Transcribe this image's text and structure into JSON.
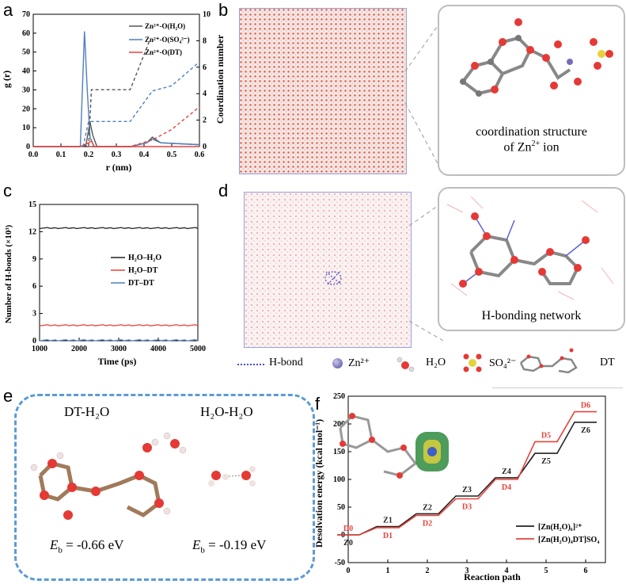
{
  "panels": {
    "a": {
      "label": "a",
      "xlabel": "r (nm)",
      "ylabel_left": "g (r)",
      "ylabel_right": "Coordination number",
      "legend": [
        "Zn²⁺-O(H₂O)",
        "Zn²⁺-O(SO₄²⁻)",
        "Zn²⁺-O(DT)"
      ],
      "xticks": [
        "0.0",
        "0.1",
        "0.2",
        "0.3",
        "0.4",
        "0.5",
        "0.6"
      ],
      "yticks_left": [
        "0",
        "10",
        "20",
        "30",
        "40",
        "50",
        "60",
        "70"
      ],
      "yticks_right": [
        "0",
        "2",
        "4",
        "6",
        "8",
        "10"
      ]
    },
    "b": {
      "label": "b",
      "caption_line1": "coordination structure",
      "caption_line2_prefix": "of Zn",
      "caption_sup": "2+",
      "caption_line2_suffix": " ion"
    },
    "c": {
      "label": "c",
      "xlabel": "Time (ps)",
      "ylabel": "Number of H-bonds (×10³)",
      "legend": [
        "H₂O–H₂O",
        "H₂O–DT",
        "DT–DT"
      ],
      "xticks": [
        "1000",
        "2000",
        "3000",
        "4000",
        "5000"
      ],
      "yticks": [
        "0",
        "3",
        "6",
        "9",
        "12",
        "15"
      ]
    },
    "d": {
      "label": "d",
      "caption": "H-bonding network",
      "legend_items": [
        "H-bond",
        "Zn²⁺",
        "H₂O",
        "SO₄²⁻",
        "DT"
      ]
    },
    "e": {
      "label": "e",
      "left_title": "DT-H₂O",
      "right_title": "H₂O-H₂O",
      "left_energy": "= -0.66 eV",
      "right_energy": "= -0.19 eV",
      "eb_symbol": "E",
      "eb_sub": "b"
    },
    "f": {
      "label": "f",
      "xlabel": "Reaction path",
      "ylabel": "Desolvation energy (kcal mol⁻¹)",
      "legend": [
        "[Zn(H₂O)₆]²⁺",
        "[Zn(H₂O)₄DT]SO₄"
      ],
      "xticks": [
        "0",
        "1",
        "2",
        "3",
        "4",
        "5",
        "6"
      ],
      "yticks": [
        "-50",
        "0",
        "50",
        "100",
        "150",
        "200",
        "250"
      ]
    }
  },
  "colors": {
    "black": "#222222",
    "blue": "#4f7fc0",
    "red": "#e8423a",
    "dashblue": "#5b9bd5"
  },
  "chart_data": [
    {
      "type": "line",
      "title": "a",
      "xlabel": "r (nm)",
      "ylabel": "g (r)",
      "y2label": "Coordination number",
      "xlim": [
        0,
        0.6
      ],
      "ylim": [
        0,
        70
      ],
      "y2lim": [
        0,
        10
      ],
      "series": [
        {
          "name": "Zn²⁺-O(H₂O) g(r)",
          "x": [
            0,
            0.17,
            0.19,
            0.205,
            0.215,
            0.23,
            0.35,
            0.41,
            0.43,
            0.46,
            0.6
          ],
          "y": [
            0,
            0,
            0.5,
            13,
            6,
            0,
            0,
            2,
            5,
            2,
            1
          ]
        },
        {
          "name": "Zn²⁺-O(SO₄²⁻) g(r)",
          "x": [
            0,
            0.17,
            0.185,
            0.195,
            0.205,
            0.22,
            0.35,
            0.41,
            0.43,
            0.46,
            0.6
          ],
          "y": [
            0,
            0,
            61,
            30,
            5,
            0,
            0,
            2,
            4,
            2,
            1
          ]
        },
        {
          "name": "Zn²⁺-O(DT) g(r)",
          "x": [
            0,
            0.17,
            0.2,
            0.21,
            0.22,
            0.6
          ],
          "y": [
            0,
            0,
            2,
            3,
            0,
            0
          ]
        },
        {
          "name": "Zn²⁺-O(H₂O) CN",
          "x": [
            0.2,
            0.21,
            0.35,
            0.42
          ],
          "y": [
            0,
            4.3,
            4.3,
            8.0
          ]
        },
        {
          "name": "Zn²⁺-O(SO₄²⁻) CN",
          "x": [
            0.18,
            0.2,
            0.35,
            0.43,
            0.5,
            0.6
          ],
          "y": [
            0,
            1.9,
            1.9,
            4.2,
            4.6,
            6.4
          ]
        },
        {
          "name": "Zn²⁺-O(DT) CN",
          "x": [
            0.2,
            0.35,
            0.43,
            0.5,
            0.6
          ],
          "y": [
            0,
            0,
            0.5,
            1.3,
            3.0
          ]
        }
      ]
    },
    {
      "type": "line",
      "title": "c",
      "xlabel": "Time (ps)",
      "ylabel": "Number of H-bonds (×10³)",
      "xlim": [
        1000,
        5000
      ],
      "ylim": [
        0,
        15
      ],
      "series": [
        {
          "name": "H₂O–H₂O",
          "x": [
            1000,
            5000
          ],
          "y": [
            12.4,
            12.4
          ]
        },
        {
          "name": "H₂O–DT",
          "x": [
            1000,
            5000
          ],
          "y": [
            1.7,
            1.7
          ]
        },
        {
          "name": "DT–DT",
          "x": [
            1000,
            5000
          ],
          "y": [
            0.05,
            0.05
          ]
        }
      ]
    },
    {
      "type": "line",
      "title": "f",
      "xlabel": "Reaction path",
      "ylabel": "Desolvation energy (kcal mol⁻¹)",
      "xlim": [
        0,
        6.5
      ],
      "ylim": [
        -50,
        250
      ],
      "series": [
        {
          "name": "[Zn(H₂O)₆]²⁺",
          "steps": [
            "Z0",
            "Z1",
            "Z2",
            "Z3",
            "Z4",
            "Z5",
            "Z6"
          ],
          "x": [
            0,
            1,
            2,
            3,
            4,
            5,
            6
          ],
          "values": [
            0,
            15,
            38,
            70,
            103,
            147,
            203
          ]
        },
        {
          "name": "[Zn(H₂O)₄DT]SO₄",
          "steps": [
            "D0",
            "D1",
            "D2",
            "D3",
            "D4",
            "D5",
            "D6"
          ],
          "x": [
            0,
            1,
            2,
            3,
            4,
            5,
            6
          ],
          "values": [
            0,
            13,
            35,
            65,
            100,
            168,
            222
          ]
        }
      ]
    }
  ]
}
